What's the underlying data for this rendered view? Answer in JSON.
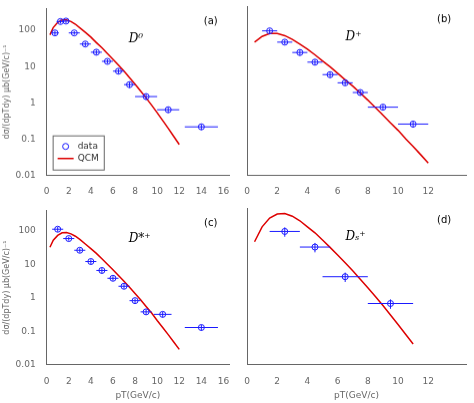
{
  "chart_data": [
    {
      "type": "line",
      "annotations": [
        "(a)",
        "D⁰"
      ],
      "ylabel": "dσ/(dpTdy) μb(GeV/c)⁻¹",
      "log": "y",
      "grid": false,
      "legend": "lower left",
      "xlim": [
        0,
        16.5
      ],
      "xticks": [
        0,
        2,
        4,
        6,
        8,
        10,
        12,
        14,
        16
      ],
      "ylim": [
        0.01,
        400
      ],
      "yticks": [
        0.01,
        0.1,
        1,
        10,
        100
      ],
      "series": [
        {
          "name": "data",
          "type": "scatter",
          "marker": "circle",
          "color": "#1a1aff",
          "x": [
            0.75,
            1.25,
            1.75,
            2.5,
            3.5,
            4.5,
            5.5,
            6.5,
            7.5,
            9.0,
            11.0,
            14.0
          ],
          "values": [
            85,
            175,
            180,
            85,
            42,
            25,
            14,
            7.5,
            3.2,
            1.5,
            0.65,
            0.22
          ],
          "x_err": [
            0.35,
            0.35,
            0.35,
            0.5,
            0.5,
            0.5,
            0.5,
            0.5,
            0.5,
            1.0,
            1.0,
            1.5
          ],
          "y_err_lo": [
            12,
            22,
            22,
            10,
            6,
            4,
            2,
            1.2,
            0.6,
            0.3,
            0.12,
            0.04
          ],
          "y_err_hi": [
            12,
            22,
            22,
            10,
            6,
            4,
            2,
            1.2,
            0.6,
            0.3,
            0.12,
            0.04
          ]
        },
        {
          "name": "QCM",
          "type": "line",
          "line_style": "solid",
          "color": "#dd0000",
          "x": [
            0.3,
            0.6,
            1.0,
            1.4,
            1.8,
            2.2,
            2.6,
            3.0,
            3.5,
            4.0,
            4.5,
            5.0,
            5.5,
            6.0,
            6.5,
            7.0,
            7.5,
            8.0,
            8.5,
            9.0,
            9.5,
            10.0,
            10.5,
            11.0,
            11.5,
            12.0
          ],
          "values": [
            75,
            120,
            165,
            195,
            195,
            175,
            148,
            118,
            88,
            65,
            46,
            33,
            23,
            16,
            11,
            7.5,
            5.0,
            3.3,
            2.15,
            1.38,
            0.87,
            0.54,
            0.33,
            0.2,
            0.12,
            0.072
          ]
        }
      ]
    },
    {
      "type": "line",
      "annotations": [
        "(b)",
        "D⁺"
      ],
      "log": "y",
      "grid": false,
      "tick_labels": "x",
      "xlim": [
        0,
        14.5
      ],
      "xticks": [
        0,
        2,
        4,
        6,
        8,
        10,
        12
      ],
      "ylim": [
        0.01,
        400
      ],
      "yticks": [
        0.01,
        0.1,
        1,
        10,
        100
      ],
      "series": [
        {
          "type": "scatter",
          "marker": "circle",
          "color": "#1a1aff",
          "x": [
            1.5,
            2.5,
            3.5,
            4.5,
            5.5,
            6.5,
            7.5,
            9.0,
            11.0
          ],
          "values": [
            85,
            42,
            22,
            12,
            5.5,
            3.3,
            1.8,
            0.72,
            0.25
          ],
          "x_err": [
            0.5,
            0.5,
            0.5,
            0.5,
            0.5,
            0.5,
            0.5,
            1.0,
            1.0
          ],
          "y_err_lo": [
            12,
            6,
            4,
            2,
            1.0,
            0.5,
            0.3,
            0.12,
            0.05
          ],
          "y_err_hi": [
            12,
            6,
            4,
            2,
            1.0,
            0.5,
            0.3,
            0.12,
            0.05
          ]
        },
        {
          "type": "line",
          "line_style": "solid",
          "color": "#dd0000",
          "x": [
            0.5,
            1.0,
            1.5,
            2.0,
            2.5,
            3.0,
            3.5,
            4.0,
            4.5,
            5.0,
            5.5,
            6.0,
            6.5,
            7.0,
            7.5,
            8.0,
            8.5,
            9.0,
            9.5,
            10.0,
            10.5,
            11.0,
            11.5,
            12.0
          ],
          "values": [
            42,
            60,
            72,
            72,
            63,
            50,
            37,
            27,
            19,
            13,
            9.0,
            6.0,
            4.0,
            2.7,
            1.75,
            1.12,
            0.7,
            0.44,
            0.27,
            0.17,
            0.1,
            0.062,
            0.037,
            0.022
          ]
        }
      ]
    },
    {
      "type": "line",
      "annotations": [
        "(c)",
        "D*⁺"
      ],
      "ylabel": "dσ/(dpTdy) μb(GeV/c)⁻¹",
      "xlabel": "pT(GeV/c)",
      "log": "y",
      "grid": false,
      "xlim": [
        0,
        16.5
      ],
      "xticks": [
        0,
        2,
        4,
        6,
        8,
        10,
        12,
        14,
        16
      ],
      "ylim": [
        0.01,
        400
      ],
      "yticks": [
        0.01,
        0.1,
        1,
        10,
        100
      ],
      "series": [
        {
          "type": "scatter",
          "marker": "circle",
          "color": "#1a1aff",
          "x": [
            1.0,
            2.0,
            3.0,
            4.0,
            5.0,
            6.0,
            7.0,
            8.0,
            9.0,
            10.5,
            14.0
          ],
          "values": [
            110,
            58,
            26,
            12,
            6.5,
            3.8,
            2.2,
            0.82,
            0.38,
            0.32,
            0.13
          ],
          "x_err": [
            0.5,
            0.5,
            0.5,
            0.5,
            0.5,
            0.5,
            0.5,
            0.5,
            0.5,
            0.8,
            1.5
          ],
          "y_err_lo": [
            18,
            8,
            4,
            2,
            1.2,
            0.6,
            0.35,
            0.13,
            0.07,
            0.06,
            0.025
          ],
          "y_err_hi": [
            18,
            8,
            4,
            2,
            1.2,
            0.6,
            0.35,
            0.13,
            0.07,
            0.06,
            0.025
          ]
        },
        {
          "type": "line",
          "line_style": "solid",
          "color": "#dd0000",
          "x": [
            0.3,
            0.6,
            1.0,
            1.4,
            1.8,
            2.2,
            2.6,
            3.0,
            3.5,
            4.0,
            4.5,
            5.0,
            5.5,
            6.0,
            6.5,
            7.0,
            7.5,
            8.0,
            8.5,
            9.0,
            9.5,
            10.0,
            10.5,
            11.0,
            11.5,
            12.0
          ],
          "values": [
            32,
            52,
            72,
            86,
            88,
            80,
            68,
            55,
            40,
            29,
            21,
            14.5,
            10.0,
            6.8,
            4.6,
            3.1,
            2.05,
            1.34,
            0.87,
            0.55,
            0.35,
            0.21,
            0.13,
            0.08,
            0.048,
            0.029
          ]
        }
      ]
    },
    {
      "type": "line",
      "annotations": [
        "(d)",
        "Dₛ⁺"
      ],
      "xlabel": "pT(GeV/c)",
      "log": "y",
      "grid": false,
      "tick_labels": "x",
      "xlim": [
        0,
        14.5
      ],
      "xticks": [
        0,
        2,
        4,
        6,
        8,
        10,
        12
      ],
      "ylim": [
        0.01,
        50
      ],
      "yticks": [
        0.01,
        0.1,
        1,
        10
      ],
      "series": [
        {
          "type": "scatter",
          "marker": "circle",
          "color": "#1a1aff",
          "x": [
            2.5,
            4.5,
            6.5,
            9.5
          ],
          "values": [
            14,
            6.0,
            1.2,
            0.28
          ],
          "x_err": [
            1.0,
            1.0,
            1.5,
            1.5
          ],
          "y_err_lo": [
            3.5,
            1.5,
            0.3,
            0.07
          ],
          "y_err_hi": [
            3.5,
            1.5,
            0.3,
            0.07
          ]
        },
        {
          "type": "line",
          "line_style": "solid",
          "color": "#dd0000",
          "x": [
            0.5,
            1.0,
            1.5,
            2.0,
            2.5,
            3.0,
            3.5,
            4.0,
            4.5,
            5.0,
            5.5,
            6.0,
            6.5,
            7.0,
            7.5,
            8.0,
            8.5,
            9.0,
            9.5,
            10.0,
            10.5,
            11.0
          ],
          "values": [
            8,
            18,
            29,
            36,
            37,
            32,
            25,
            18,
            13,
            8.8,
            5.9,
            3.9,
            2.55,
            1.65,
            1.05,
            0.66,
            0.41,
            0.25,
            0.15,
            0.09,
            0.053,
            0.031
          ]
        }
      ]
    }
  ]
}
